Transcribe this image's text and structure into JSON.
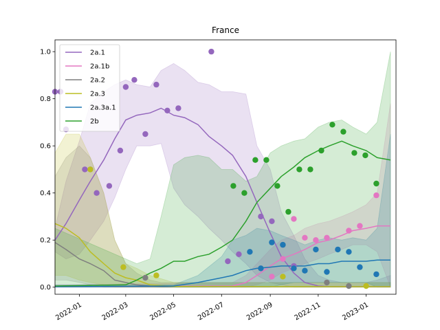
{
  "chart_data": {
    "type": "line",
    "title": "France",
    "xlabel": "",
    "ylabel": "",
    "xlim": [
      "2021-12-01",
      "2023-02-08"
    ],
    "ylim": [
      -0.03,
      1.05
    ],
    "yticks": [
      0.0,
      0.2,
      0.4,
      0.6,
      0.8,
      1.0
    ],
    "ytick_labels": [
      "0.0",
      "0.2",
      "0.4",
      "0.6",
      "0.8",
      "1.0"
    ],
    "xticks": [
      "2022-01-01",
      "2022-03-01",
      "2022-05-01",
      "2022-07-01",
      "2022-09-01",
      "2022-11-01",
      "2023-01-01"
    ],
    "xtick_labels": [
      "2022-01",
      "2022-03",
      "2022-05",
      "2022-07",
      "2022-09",
      "2022-11",
      "2023-01"
    ],
    "grid": false,
    "legend_position": "top-left",
    "series": [
      {
        "name": "2a.1",
        "color": "#9467bd",
        "line": {
          "x": [
            "2021-12-01",
            "2021-12-15",
            "2022-01-01",
            "2022-01-15",
            "2022-02-01",
            "2022-02-15",
            "2022-03-01",
            "2022-03-15",
            "2022-04-01",
            "2022-04-15",
            "2022-05-01",
            "2022-05-15",
            "2022-06-01",
            "2022-06-15",
            "2022-07-01",
            "2022-07-15",
            "2022-08-01",
            "2022-08-15",
            "2022-09-01",
            "2022-09-15",
            "2022-10-01",
            "2022-10-15",
            "2022-11-01",
            "2022-11-15",
            "2022-12-01",
            "2022-12-15",
            "2023-01-01",
            "2023-01-15",
            "2023-02-01"
          ],
          "y": [
            0.2,
            0.27,
            0.37,
            0.45,
            0.54,
            0.63,
            0.71,
            0.73,
            0.74,
            0.76,
            0.73,
            0.72,
            0.69,
            0.64,
            0.6,
            0.56,
            0.47,
            0.36,
            0.23,
            0.13,
            0.06,
            0.02,
            0.005,
            0.003,
            0.002,
            0.002,
            0.002,
            0.002,
            0.002
          ]
        },
        "band": {
          "upper": [
            0.25,
            0.45,
            0.62,
            0.78,
            0.83,
            0.86,
            0.88,
            0.86,
            0.85,
            0.92,
            0.95,
            0.92,
            0.87,
            0.86,
            0.83,
            0.83,
            0.82,
            0.6,
            0.5,
            0.32,
            0.22,
            0.12,
            0.05,
            0.03,
            0.02,
            0.02,
            0.02,
            0.03,
            0.05
          ],
          "lower": [
            0.15,
            0.12,
            0.14,
            0.2,
            0.28,
            0.38,
            0.5,
            0.6,
            0.6,
            0.61,
            0.42,
            0.35,
            0.3,
            0.25,
            0.2,
            0.15,
            0.1,
            0.05,
            0.02,
            0.01,
            0,
            0,
            0,
            0,
            0,
            0,
            0,
            0,
            0
          ]
        },
        "points": {
          "x": [
            "2021-12-01",
            "2021-12-08",
            "2021-12-15",
            "2022-01-08",
            "2022-01-15",
            "2022-01-23",
            "2022-02-08",
            "2022-02-22",
            "2022-03-01",
            "2022-03-12",
            "2022-03-26",
            "2022-04-09",
            "2022-04-23",
            "2022-05-07",
            "2022-06-18",
            "2022-07-09",
            "2022-07-23",
            "2022-08-20",
            "2022-09-03",
            "2022-10-01"
          ],
          "y": [
            0.83,
            0.83,
            0.67,
            0.5,
            0.5,
            0.4,
            0.43,
            0.58,
            0.85,
            0.88,
            0.65,
            0.86,
            0.75,
            0.76,
            1.0,
            0.11,
            0.14,
            0.3,
            0.28,
            0.09
          ]
        }
      },
      {
        "name": "2a.1b",
        "color": "#e377c2",
        "line": {
          "x": [
            "2021-12-01",
            "2022-07-15",
            "2022-08-01",
            "2022-08-15",
            "2022-09-01",
            "2022-09-15",
            "2022-10-01",
            "2022-10-15",
            "2022-11-01",
            "2022-11-15",
            "2022-12-01",
            "2022-12-15",
            "2023-01-01",
            "2023-01-15",
            "2023-02-01"
          ],
          "y": [
            0.002,
            0.005,
            0.02,
            0.05,
            0.09,
            0.12,
            0.14,
            0.16,
            0.19,
            0.2,
            0.22,
            0.24,
            0.25,
            0.26,
            0.26
          ]
        },
        "band": {
          "upper": [
            0.01,
            0.02,
            0.05,
            0.1,
            0.16,
            0.2,
            0.22,
            0.25,
            0.27,
            0.28,
            0.3,
            0.32,
            0.35,
            0.4,
            0.78
          ],
          "lower": [
            0,
            0,
            0,
            0.01,
            0.03,
            0.06,
            0.08,
            0.1,
            0.12,
            0.14,
            0.16,
            0.18,
            0.18,
            0.15,
            0.0
          ]
        },
        "points": {
          "x": [
            "2022-09-03",
            "2022-09-17",
            "2022-10-01",
            "2022-10-15",
            "2022-10-29",
            "2022-11-12",
            "2022-12-10",
            "2022-12-24",
            "2023-01-14"
          ],
          "y": [
            0.045,
            0.12,
            0.29,
            0.21,
            0.2,
            0.21,
            0.24,
            0.26,
            0.39
          ]
        }
      },
      {
        "name": "2a.2",
        "color": "#7f7f7f",
        "line": {
          "x": [
            "2021-12-01",
            "2021-12-15",
            "2022-01-01",
            "2022-01-15",
            "2022-02-01",
            "2022-02-15",
            "2022-03-01",
            "2022-03-15",
            "2022-04-01",
            "2022-04-15",
            "2022-05-01",
            "2022-06-01",
            "2023-02-01"
          ],
          "y": [
            0.19,
            0.16,
            0.12,
            0.1,
            0.07,
            0.03,
            0.02,
            0.01,
            0.005,
            0.003,
            0.002,
            0.002,
            0.002
          ]
        },
        "band": {
          "upper": [
            0.47,
            0.55,
            0.6,
            0.55,
            0.4,
            0.2,
            0.1,
            0.06,
            0.03,
            0.02,
            0.02,
            0.02,
            0.02
          ],
          "lower": [
            0.03,
            0.03,
            0.02,
            0.01,
            0,
            0,
            0,
            0,
            0,
            0,
            0,
            0,
            0
          ]
        },
        "points": {
          "x": [
            "2022-03-26",
            "2022-09-17",
            "2022-11-12",
            "2022-12-10"
          ],
          "y": [
            0.04,
            0.18,
            0.02,
            0.005
          ]
        }
      },
      {
        "name": "2a.3",
        "color": "#bcbd22",
        "line": {
          "x": [
            "2021-12-01",
            "2021-12-15",
            "2022-01-01",
            "2022-01-15",
            "2022-02-01",
            "2022-02-15",
            "2022-03-01",
            "2022-03-15",
            "2022-04-01",
            "2022-05-01",
            "2023-02-01"
          ],
          "y": [
            0.27,
            0.25,
            0.21,
            0.15,
            0.1,
            0.06,
            0.04,
            0.03,
            0.01,
            0.003,
            0.002
          ]
        },
        "band": {
          "upper": [
            0.57,
            0.65,
            0.65,
            0.55,
            0.4,
            0.2,
            0.1,
            0.08,
            0.05,
            0.02,
            0.02
          ],
          "lower": [
            0.05,
            0.05,
            0.03,
            0.02,
            0.01,
            0,
            0,
            0,
            0,
            0,
            0
          ]
        },
        "points": {
          "x": [
            "2022-01-15",
            "2022-02-26",
            "2022-04-09",
            "2022-09-17",
            "2023-01-01"
          ],
          "y": [
            0.5,
            0.085,
            0.05,
            0.045,
            0.005
          ]
        }
      },
      {
        "name": "2a.3a.1",
        "color": "#1f77b4",
        "line": {
          "x": [
            "2021-12-01",
            "2022-05-01",
            "2022-06-01",
            "2022-07-01",
            "2022-07-15",
            "2022-08-01",
            "2022-08-15",
            "2022-09-01",
            "2022-09-15",
            "2022-10-01",
            "2022-10-15",
            "2022-11-01",
            "2022-11-15",
            "2022-12-01",
            "2022-12-15",
            "2023-01-01",
            "2023-01-15",
            "2023-02-01"
          ],
          "y": [
            0.002,
            0.005,
            0.02,
            0.04,
            0.05,
            0.07,
            0.08,
            0.085,
            0.09,
            0.09,
            0.09,
            0.1,
            0.1,
            0.11,
            0.11,
            0.11,
            0.115,
            0.115
          ]
        },
        "band": {
          "upper": [
            0.01,
            0.01,
            0.05,
            0.13,
            0.2,
            0.22,
            0.25,
            0.24,
            0.22,
            0.2,
            0.18,
            0.2,
            0.21,
            0.2,
            0.21,
            0.2,
            0.25,
            0.65
          ],
          "lower": [
            0,
            0,
            0,
            0,
            0,
            0,
            0,
            0,
            0.01,
            0.02,
            0.02,
            0.02,
            0.02,
            0.02,
            0.02,
            0.02,
            0.0,
            0.0
          ]
        },
        "points": {
          "x": [
            "2022-08-06",
            "2022-08-20",
            "2022-09-03",
            "2022-09-17",
            "2022-10-01",
            "2022-10-15",
            "2022-10-29",
            "2022-11-12",
            "2022-11-26",
            "2022-12-10",
            "2022-12-24",
            "2023-01-14"
          ],
          "y": [
            0.15,
            0.08,
            0.19,
            0.18,
            0.08,
            0.07,
            0.16,
            0.065,
            0.16,
            0.15,
            0.085,
            0.055
          ]
        }
      },
      {
        "name": "2b",
        "color": "#2ca02c",
        "line": {
          "x": [
            "2021-12-01",
            "2022-03-01",
            "2022-03-15",
            "2022-04-01",
            "2022-04-15",
            "2022-05-01",
            "2022-05-15",
            "2022-06-01",
            "2022-06-15",
            "2022-07-01",
            "2022-07-15",
            "2022-08-01",
            "2022-08-15",
            "2022-09-01",
            "2022-09-15",
            "2022-10-01",
            "2022-10-15",
            "2022-11-01",
            "2022-11-15",
            "2022-12-01",
            "2022-12-15",
            "2023-01-01",
            "2023-01-15",
            "2023-02-01"
          ],
          "y": [
            0.005,
            0.01,
            0.03,
            0.06,
            0.08,
            0.11,
            0.11,
            0.13,
            0.14,
            0.17,
            0.2,
            0.28,
            0.36,
            0.42,
            0.47,
            0.51,
            0.55,
            0.58,
            0.6,
            0.62,
            0.6,
            0.58,
            0.55,
            0.54
          ]
        },
        "band": {
          "upper": [
            0.25,
            0.12,
            0.1,
            0.12,
            0.3,
            0.52,
            0.55,
            0.56,
            0.55,
            0.5,
            0.5,
            0.45,
            0.47,
            0.57,
            0.6,
            0.62,
            0.63,
            0.68,
            0.7,
            0.71,
            0.68,
            0.65,
            0.7,
            1.0
          ]
        },
        "points": {
          "x": [
            "2022-07-16",
            "2022-07-30",
            "2022-08-13",
            "2022-08-27",
            "2022-09-10",
            "2022-09-24",
            "2022-10-08",
            "2022-10-22",
            "2022-11-05",
            "2022-11-19",
            "2022-12-03",
            "2022-12-17",
            "2022-12-31",
            "2023-01-14"
          ],
          "y": [
            0.43,
            0.4,
            0.54,
            0.54,
            0.43,
            0.32,
            0.5,
            0.5,
            0.58,
            0.69,
            0.66,
            0.57,
            0.56,
            0.44
          ]
        }
      }
    ]
  }
}
